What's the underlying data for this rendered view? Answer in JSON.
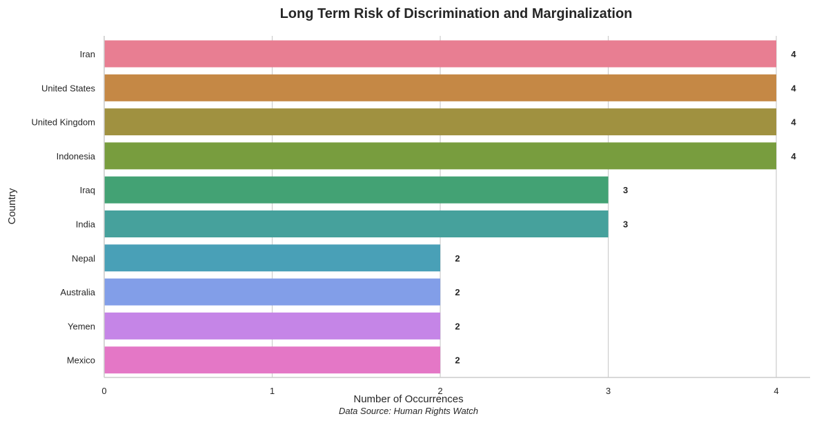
{
  "chart_data": {
    "type": "bar",
    "orientation": "horizontal",
    "title": "Long Term Risk of Discrimination and Marginalization",
    "xlabel": "Number of Occurrences",
    "ylabel": "Country",
    "source": "Data Source: Human Rights Watch",
    "categories": [
      "Iran",
      "United States",
      "United Kingdom",
      "Indonesia",
      "Iraq",
      "India",
      "Nepal",
      "Australia",
      "Yemen",
      "Mexico"
    ],
    "values": [
      4,
      4,
      4,
      4,
      3,
      3,
      2,
      2,
      2,
      2
    ],
    "colors": [
      "#e87e92",
      "#c58845",
      "#a09140",
      "#789d3e",
      "#43a274",
      "#46a19c",
      "#49a0b7",
      "#829ee8",
      "#c585e7",
      "#e477c6"
    ],
    "xlim": [
      0,
      4.2
    ],
    "xticks": [
      "0",
      "1",
      "2",
      "3",
      "4"
    ],
    "grid": true,
    "legend": "none"
  }
}
